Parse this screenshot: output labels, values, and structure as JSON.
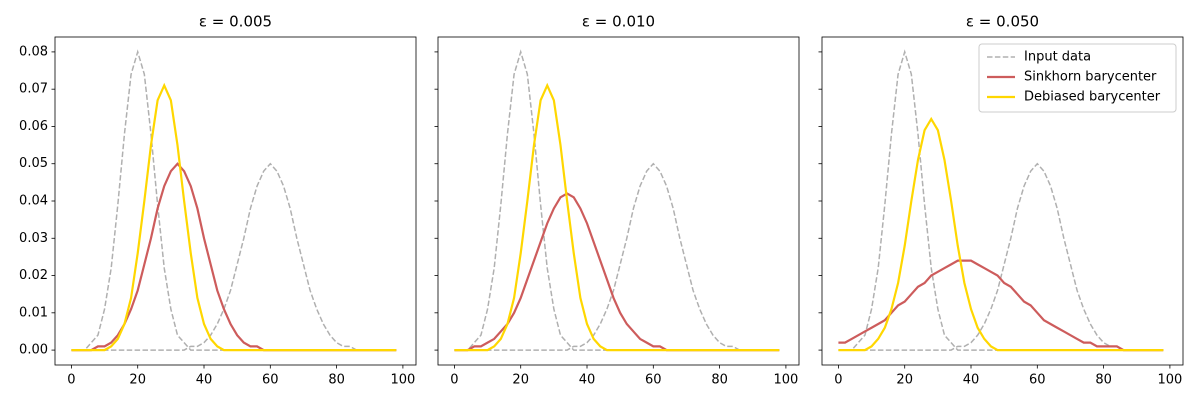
{
  "chart_data": [
    {
      "type": "line",
      "title": "ε = 0.005",
      "x": [
        0,
        2,
        4,
        6,
        8,
        10,
        12,
        14,
        16,
        18,
        20,
        22,
        24,
        26,
        28,
        30,
        32,
        34,
        36,
        38,
        40,
        42,
        44,
        46,
        48,
        50,
        52,
        54,
        56,
        58,
        60,
        62,
        64,
        66,
        68,
        70,
        72,
        74,
        76,
        78,
        80,
        82,
        84,
        86,
        88,
        90,
        92,
        94,
        96,
        98
      ],
      "xlim": [
        -4.95,
        103.95
      ],
      "xticks": [
        0,
        20,
        40,
        60,
        80,
        100
      ],
      "ylim": [
        -0.004,
        0.084
      ],
      "yticks": [
        {
          "value": 0,
          "label": "0.00"
        },
        0.01,
        0.02,
        0.03,
        0.04,
        0.05,
        0.06,
        0.07,
        0.08
      ],
      "legend": false,
      "series": [
        {
          "name": "Input data",
          "color": "#b0b0b0",
          "dashed": true,
          "values": [
            0,
            0,
            0,
            0.002,
            0.004,
            0.011,
            0.022,
            0.039,
            0.058,
            0.074,
            0.08,
            0.074,
            0.058,
            0.039,
            0.022,
            0.011,
            0.004,
            0.002,
            0,
            0,
            0,
            0,
            0,
            0,
            0,
            0,
            0,
            0,
            0,
            0,
            0,
            0,
            0,
            0,
            0,
            0,
            0,
            0,
            0,
            0,
            0,
            0,
            0,
            0,
            0,
            0,
            0,
            0,
            0,
            0
          ]
        },
        {
          "color": "#b0b0b0",
          "dashed": true,
          "values": [
            0,
            0,
            0,
            0,
            0,
            0,
            0,
            0,
            0,
            0,
            0,
            0,
            0,
            0,
            0,
            0,
            0,
            0,
            0.001,
            0.001,
            0.002,
            0.004,
            0.007,
            0.011,
            0.016,
            0.023,
            0.03,
            0.038,
            0.044,
            0.048,
            0.05,
            0.048,
            0.044,
            0.038,
            0.03,
            0.023,
            0.016,
            0.011,
            0.007,
            0.004,
            0.002,
            0.001,
            0.001,
            0,
            0,
            0,
            0,
            0,
            0,
            0
          ]
        },
        {
          "name": "Sinkhorn barycenter",
          "color": "#cd5c5c",
          "dashed": false,
          "values": [
            0,
            0,
            0,
            0,
            0.001,
            0.001,
            0.002,
            0.004,
            0.007,
            0.011,
            0.016,
            0.023,
            0.03,
            0.038,
            0.044,
            0.048,
            0.05,
            0.048,
            0.044,
            0.038,
            0.03,
            0.023,
            0.016,
            0.011,
            0.007,
            0.004,
            0.002,
            0.001,
            0.001,
            0,
            0,
            0,
            0,
            0,
            0,
            0,
            0,
            0,
            0,
            0,
            0,
            0,
            0,
            0,
            0,
            0,
            0,
            0,
            0,
            0
          ]
        },
        {
          "name": "Debiased barycenter",
          "color": "#ffd700",
          "dashed": false,
          "values": [
            0,
            0,
            0,
            0,
            0,
            0,
            0.001,
            0.003,
            0.007,
            0.014,
            0.026,
            0.04,
            0.055,
            0.067,
            0.071,
            0.067,
            0.055,
            0.04,
            0.026,
            0.014,
            0.007,
            0.003,
            0.001,
            0,
            0,
            0,
            0,
            0,
            0,
            0,
            0,
            0,
            0,
            0,
            0,
            0,
            0,
            0,
            0,
            0,
            0,
            0,
            0,
            0,
            0,
            0,
            0,
            0,
            0,
            0
          ]
        }
      ]
    },
    {
      "type": "line",
      "title": "ε = 0.010",
      "x": [
        0,
        2,
        4,
        6,
        8,
        10,
        12,
        14,
        16,
        18,
        20,
        22,
        24,
        26,
        28,
        30,
        32,
        34,
        36,
        38,
        40,
        42,
        44,
        46,
        48,
        50,
        52,
        54,
        56,
        58,
        60,
        62,
        64,
        66,
        68,
        70,
        72,
        74,
        76,
        78,
        80,
        82,
        84,
        86,
        88,
        90,
        92,
        94,
        96,
        98
      ],
      "xlim": [
        -4.95,
        103.95
      ],
      "xticks": [
        0,
        20,
        40,
        60,
        80,
        100
      ],
      "sharey": true,
      "legend": false,
      "series": [
        {
          "name": "Input data",
          "color": "#b0b0b0",
          "dashed": true,
          "values": [
            0,
            0,
            0,
            0.002,
            0.004,
            0.011,
            0.022,
            0.039,
            0.058,
            0.074,
            0.08,
            0.074,
            0.058,
            0.039,
            0.022,
            0.011,
            0.004,
            0.002,
            0,
            0,
            0,
            0,
            0,
            0,
            0,
            0,
            0,
            0,
            0,
            0,
            0,
            0,
            0,
            0,
            0,
            0,
            0,
            0,
            0,
            0,
            0,
            0,
            0,
            0,
            0,
            0,
            0,
            0,
            0,
            0
          ]
        },
        {
          "color": "#b0b0b0",
          "dashed": true,
          "values": [
            0,
            0,
            0,
            0,
            0,
            0,
            0,
            0,
            0,
            0,
            0,
            0,
            0,
            0,
            0,
            0,
            0,
            0,
            0.001,
            0.001,
            0.002,
            0.004,
            0.007,
            0.011,
            0.016,
            0.023,
            0.03,
            0.038,
            0.044,
            0.048,
            0.05,
            0.048,
            0.044,
            0.038,
            0.03,
            0.023,
            0.016,
            0.011,
            0.007,
            0.004,
            0.002,
            0.001,
            0.001,
            0,
            0,
            0,
            0,
            0,
            0,
            0
          ]
        },
        {
          "name": "Sinkhorn barycenter",
          "color": "#cd5c5c",
          "dashed": false,
          "values": [
            0,
            0,
            0,
            0.001,
            0.001,
            0.002,
            0.003,
            0.005,
            0.007,
            0.01,
            0.014,
            0.019,
            0.024,
            0.029,
            0.034,
            0.038,
            0.041,
            0.042,
            0.041,
            0.038,
            0.034,
            0.029,
            0.024,
            0.019,
            0.014,
            0.01,
            0.007,
            0.005,
            0.003,
            0.002,
            0.001,
            0.001,
            0,
            0,
            0,
            0,
            0,
            0,
            0,
            0,
            0,
            0,
            0,
            0,
            0,
            0,
            0,
            0,
            0,
            0
          ]
        },
        {
          "name": "Debiased barycenter",
          "color": "#ffd700",
          "dashed": false,
          "values": [
            0,
            0,
            0,
            0,
            0,
            0,
            0.001,
            0.003,
            0.007,
            0.014,
            0.026,
            0.04,
            0.055,
            0.067,
            0.071,
            0.067,
            0.055,
            0.04,
            0.026,
            0.014,
            0.007,
            0.003,
            0.001,
            0,
            0,
            0,
            0,
            0,
            0,
            0,
            0,
            0,
            0,
            0,
            0,
            0,
            0,
            0,
            0,
            0,
            0,
            0,
            0,
            0,
            0,
            0,
            0,
            0,
            0,
            0
          ]
        }
      ]
    },
    {
      "type": "line",
      "title": "ε = 0.050",
      "x": [
        0,
        2,
        4,
        6,
        8,
        10,
        12,
        14,
        16,
        18,
        20,
        22,
        24,
        26,
        28,
        30,
        32,
        34,
        36,
        38,
        40,
        42,
        44,
        46,
        48,
        50,
        52,
        54,
        56,
        58,
        60,
        62,
        64,
        66,
        68,
        70,
        72,
        74,
        76,
        78,
        80,
        82,
        84,
        86,
        88,
        90,
        92,
        94,
        96,
        98
      ],
      "xlim": [
        -4.95,
        103.95
      ],
      "xticks": [
        0,
        20,
        40,
        60,
        80,
        100
      ],
      "sharey": true,
      "legend": "upper right",
      "series": [
        {
          "name": "Input data",
          "color": "#b0b0b0",
          "dashed": true,
          "values": [
            0,
            0,
            0,
            0.002,
            0.004,
            0.011,
            0.022,
            0.039,
            0.058,
            0.074,
            0.08,
            0.074,
            0.058,
            0.039,
            0.022,
            0.011,
            0.004,
            0.002,
            0,
            0,
            0,
            0,
            0,
            0,
            0,
            0,
            0,
            0,
            0,
            0,
            0,
            0,
            0,
            0,
            0,
            0,
            0,
            0,
            0,
            0,
            0,
            0,
            0,
            0,
            0,
            0,
            0,
            0,
            0,
            0
          ]
        },
        {
          "color": "#b0b0b0",
          "dashed": true,
          "values": [
            0,
            0,
            0,
            0,
            0,
            0,
            0,
            0,
            0,
            0,
            0,
            0,
            0,
            0,
            0,
            0,
            0,
            0,
            0.001,
            0.001,
            0.002,
            0.004,
            0.007,
            0.011,
            0.016,
            0.023,
            0.03,
            0.038,
            0.044,
            0.048,
            0.05,
            0.048,
            0.044,
            0.038,
            0.03,
            0.023,
            0.016,
            0.011,
            0.007,
            0.004,
            0.002,
            0.001,
            0.001,
            0,
            0,
            0,
            0,
            0,
            0,
            0
          ]
        },
        {
          "name": "Sinkhorn barycenter",
          "color": "#cd5c5c",
          "dashed": false,
          "values": [
            0.002,
            0.002,
            0.003,
            0.004,
            0.005,
            0.006,
            0.007,
            0.008,
            0.01,
            0.012,
            0.013,
            0.015,
            0.017,
            0.018,
            0.02,
            0.021,
            0.022,
            0.023,
            0.024,
            0.024,
            0.024,
            0.023,
            0.022,
            0.021,
            0.02,
            0.018,
            0.017,
            0.015,
            0.013,
            0.012,
            0.01,
            0.008,
            0.007,
            0.006,
            0.005,
            0.004,
            0.003,
            0.002,
            0.002,
            0.001,
            0.001,
            0.001,
            0.001,
            0,
            0,
            0,
            0,
            0,
            0,
            0
          ]
        },
        {
          "name": "Debiased barycenter",
          "color": "#ffd700",
          "dashed": false,
          "values": [
            0,
            0,
            0,
            0,
            0,
            0.001,
            0.003,
            0.006,
            0.011,
            0.018,
            0.028,
            0.04,
            0.051,
            0.059,
            0.062,
            0.059,
            0.051,
            0.04,
            0.028,
            0.018,
            0.011,
            0.006,
            0.003,
            0.001,
            0,
            0,
            0,
            0,
            0,
            0,
            0,
            0,
            0,
            0,
            0,
            0,
            0,
            0,
            0,
            0,
            0,
            0,
            0,
            0,
            0,
            0,
            0,
            0,
            0,
            0
          ]
        }
      ]
    }
  ]
}
